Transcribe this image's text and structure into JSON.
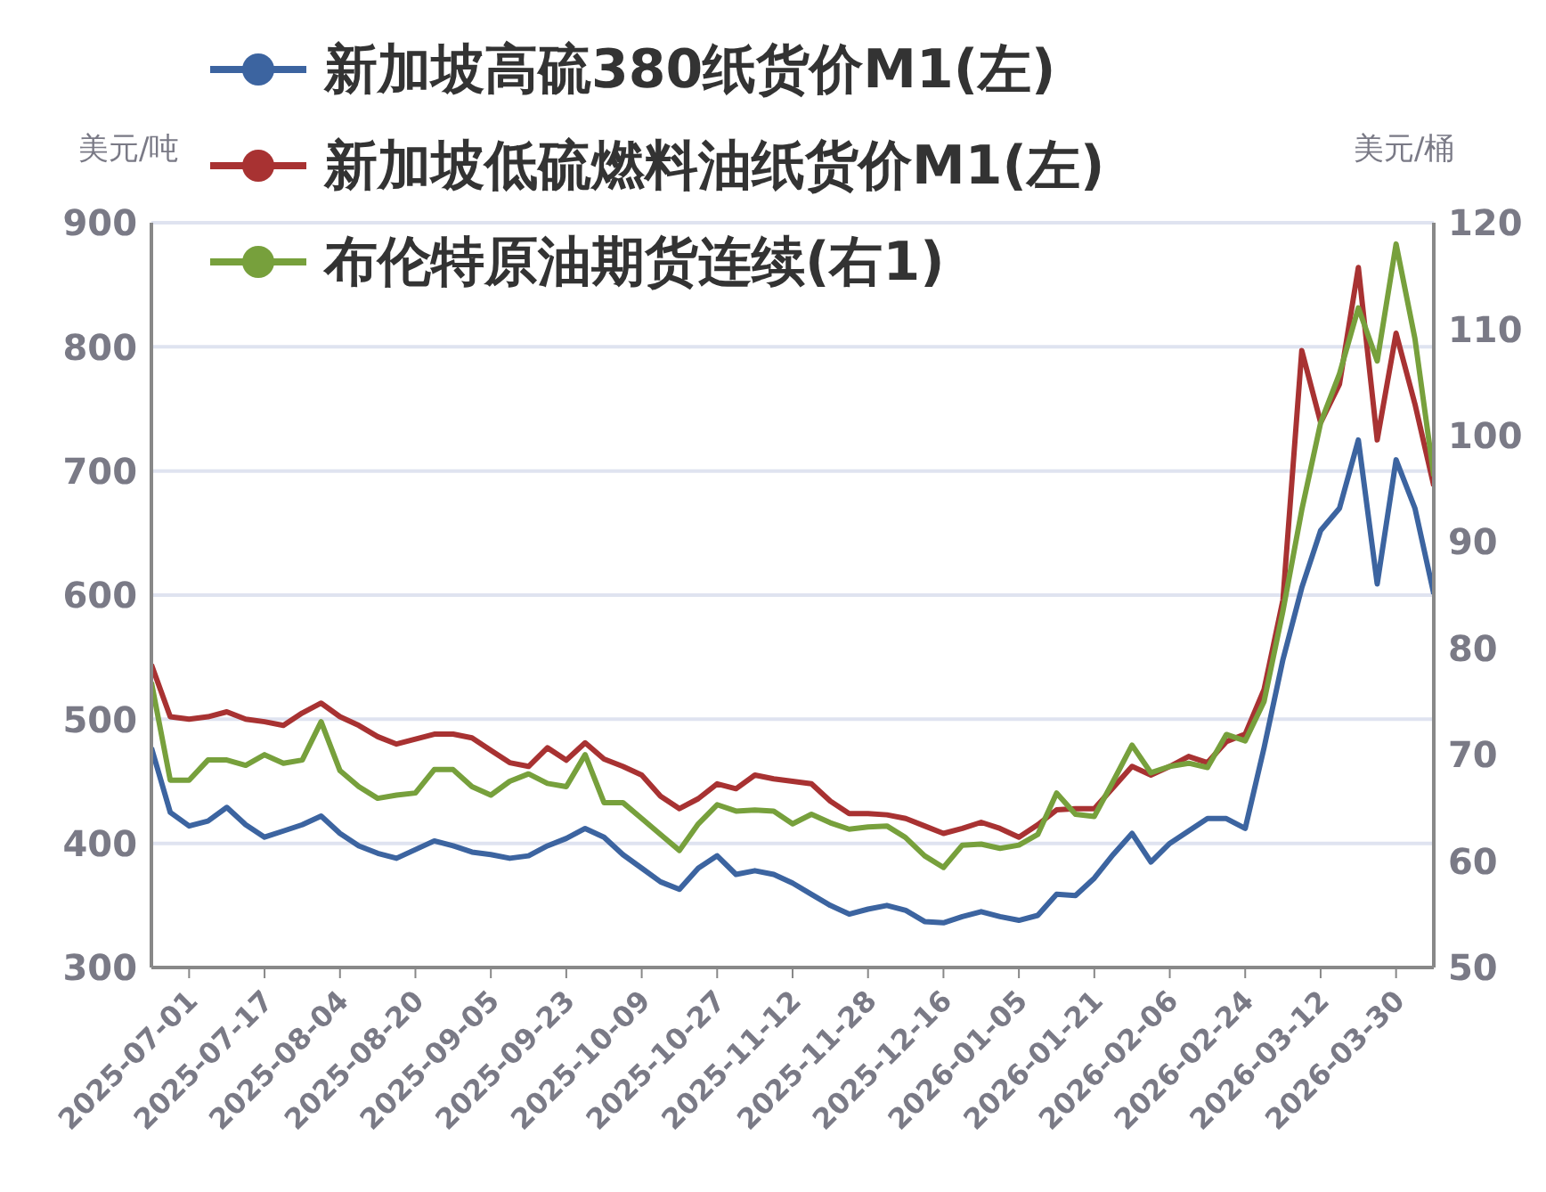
{
  "chart_data": {
    "type": "line",
    "ylabel": "美元/吨",
    "y2label": "美元/桶",
    "legend": "top left",
    "grid": "y",
    "marker": "none",
    "line_style": "solid",
    "categories": [
      null,
      null,
      "2025-07-01",
      null,
      null,
      null,
      "2025-07-17",
      null,
      null,
      null,
      "2025-08-04",
      null,
      null,
      null,
      "2025-08-20",
      null,
      null,
      null,
      "2025-09-05",
      null,
      null,
      null,
      "2025-09-23",
      null,
      null,
      null,
      "2025-10-09",
      null,
      null,
      null,
      "2025-10-27",
      null,
      null,
      null,
      "2025-11-12",
      null,
      null,
      null,
      "2025-11-28",
      null,
      null,
      null,
      "2025-12-16",
      null,
      null,
      null,
      "2026-01-05",
      null,
      null,
      null,
      "2026-01-21",
      null,
      null,
      null,
      "2026-02-06",
      null,
      null,
      null,
      "2026-02-24",
      null,
      null,
      null,
      "2026-03-12",
      null,
      null,
      null,
      "2026-03-30",
      null,
      null
    ],
    "ylim": [
      300,
      900
    ],
    "yticks": [
      300,
      400,
      500,
      600,
      700,
      800,
      900
    ],
    "y2lim": [
      50,
      120
    ],
    "y2ticks": [
      50,
      60,
      70,
      80,
      90,
      100,
      110,
      120
    ],
    "series": [
      {
        "name": "新加坡高硫380纸货价M1(左)",
        "color": "#3c64a0",
        "values": [
          477,
          425,
          414,
          418,
          429,
          415,
          405,
          410,
          415,
          422,
          408,
          398,
          392,
          388,
          395,
          402,
          398,
          393,
          391,
          388,
          390,
          398,
          404,
          412,
          405,
          391,
          380,
          369,
          363,
          380,
          390,
          375,
          378,
          375,
          368,
          359,
          350,
          343,
          347,
          350,
          346,
          337,
          336,
          341,
          345,
          341,
          338,
          342,
          359,
          358,
          372,
          391,
          408,
          385,
          400,
          410,
          420,
          420,
          412,
          477,
          548,
          606,
          652,
          670,
          725,
          609,
          709,
          670,
          601
        ]
      },
      {
        "name": "新加坡低硫燃料油纸货价M1(左)",
        "color": "#a83232",
        "values": [
          544,
          502,
          500,
          502,
          506,
          500,
          498,
          495,
          505,
          513,
          502,
          495,
          486,
          480,
          484,
          488,
          488,
          485,
          475,
          465,
          462,
          477,
          467,
          481,
          468,
          462,
          455,
          438,
          428,
          436,
          448,
          444,
          455,
          452,
          450,
          448,
          434,
          424,
          424,
          423,
          420,
          414,
          408,
          412,
          417,
          412,
          405,
          415,
          427,
          428,
          428,
          445,
          462,
          455,
          462,
          470,
          465,
          482,
          488,
          524,
          596,
          797,
          739,
          770,
          864,
          725,
          811,
          754,
          688
        ]
      },
      {
        "name": "布伦特原油期货连续(右1)",
        "color": "#77a03c",
        "axis": "y2",
        "values": [
          76.8,
          67.6,
          67.6,
          69.5,
          69.5,
          69,
          70,
          69.2,
          69.5,
          73.1,
          68.5,
          67,
          65.9,
          66.2,
          66.4,
          68.6,
          68.6,
          67,
          66.2,
          67.5,
          68.2,
          67.3,
          67,
          70,
          65.5,
          65.5,
          64,
          62.5,
          61,
          63.5,
          65.3,
          64.7,
          64.8,
          64.7,
          63.5,
          64.4,
          63.6,
          63,
          63.2,
          63.3,
          62.2,
          60.5,
          59.4,
          61.5,
          61.6,
          61.2,
          61.5,
          62.5,
          66.4,
          64.4,
          64.2,
          67.5,
          70.9,
          68.3,
          68.9,
          69.2,
          68.8,
          71.9,
          71.3,
          75,
          83.5,
          93,
          101.2,
          105.8,
          112,
          107,
          118,
          109.1,
          96.2
        ]
      }
    ]
  }
}
